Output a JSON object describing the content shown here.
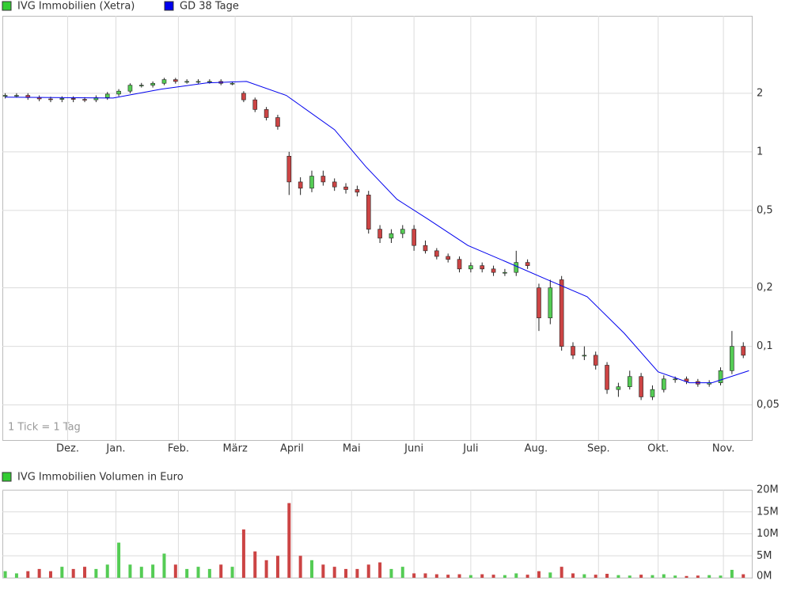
{
  "chart_data": [
    {
      "type": "candlestick",
      "annotation": "1 Tick = 1 Tag",
      "log_scale": true,
      "grid": true,
      "xlim": [
        0,
        264
      ],
      "xticks": [
        {
          "value": 23,
          "label": "Dez."
        },
        {
          "value": 40,
          "label": "Jan."
        },
        {
          "value": 62,
          "label": "Feb."
        },
        {
          "value": 82,
          "label": "März"
        },
        {
          "value": 102,
          "label": "April"
        },
        {
          "value": 123,
          "label": "Mai"
        },
        {
          "value": 145,
          "label": "Juni"
        },
        {
          "value": 165,
          "label": "Juli"
        },
        {
          "value": 188,
          "label": "Aug."
        },
        {
          "value": 210,
          "label": "Sep."
        },
        {
          "value": 231,
          "label": "Okt."
        },
        {
          "value": 254,
          "label": "Nov."
        }
      ],
      "ylim": [
        0.033,
        5
      ],
      "yticks": [
        {
          "value": 0.05,
          "label": "0,05"
        },
        {
          "value": 0.1,
          "label": "0,1"
        },
        {
          "value": 0.2,
          "label": "0,2"
        },
        {
          "value": 0.5,
          "label": "0,5"
        },
        1,
        2
      ],
      "series": [
        {
          "name": "IVG Immobilien (Xetra)",
          "color": "#33cc33",
          "up_color": "#55cc55",
          "down_color": "#cc4444",
          "x": [
            1,
            5,
            9,
            13,
            17,
            21,
            25,
            29,
            33,
            37,
            41,
            45,
            49,
            53,
            57,
            61,
            65,
            69,
            73,
            77,
            81,
            85,
            89,
            93,
            97,
            101,
            105,
            109,
            113,
            117,
            121,
            125,
            129,
            133,
            137,
            141,
            145,
            149,
            153,
            157,
            161,
            165,
            169,
            173,
            177,
            181,
            185,
            189,
            193,
            197,
            201,
            205,
            209,
            213,
            217,
            221,
            225,
            229,
            233,
            237,
            241,
            245,
            249,
            253,
            257,
            261
          ],
          "open": [
            1.93,
            1.95,
            1.95,
            1.9,
            1.87,
            1.86,
            1.88,
            1.86,
            1.85,
            1.9,
            1.98,
            2.05,
            2.2,
            2.2,
            2.25,
            2.35,
            2.3,
            2.3,
            2.3,
            2.3,
            2.25,
            2.0,
            1.85,
            1.65,
            1.5,
            0.95,
            0.7,
            0.65,
            0.75,
            0.7,
            0.66,
            0.64,
            0.6,
            0.4,
            0.36,
            0.38,
            0.4,
            0.33,
            0.31,
            0.29,
            0.28,
            0.25,
            0.26,
            0.25,
            0.24,
            0.24,
            0.27,
            0.2,
            0.14,
            0.22,
            0.1,
            0.09,
            0.09,
            0.08,
            0.06,
            0.062,
            0.07,
            0.055,
            0.06,
            0.068,
            0.068,
            0.066,
            0.064,
            0.065,
            0.075,
            0.1
          ],
          "high": [
            2.0,
            2.0,
            2.0,
            1.95,
            1.92,
            1.93,
            1.93,
            1.91,
            1.95,
            2.03,
            2.1,
            2.25,
            2.26,
            2.3,
            2.4,
            2.4,
            2.36,
            2.36,
            2.36,
            2.36,
            2.3,
            2.05,
            1.9,
            1.7,
            1.55,
            1.0,
            0.74,
            0.8,
            0.8,
            0.73,
            0.69,
            0.67,
            0.63,
            0.42,
            0.4,
            0.42,
            0.42,
            0.35,
            0.32,
            0.3,
            0.29,
            0.27,
            0.27,
            0.26,
            0.25,
            0.31,
            0.28,
            0.21,
            0.22,
            0.23,
            0.105,
            0.1,
            0.094,
            0.083,
            0.065,
            0.075,
            0.073,
            0.063,
            0.071,
            0.07,
            0.07,
            0.068,
            0.067,
            0.078,
            0.12,
            0.105
          ],
          "low": [
            1.88,
            1.9,
            1.85,
            1.82,
            1.8,
            1.8,
            1.8,
            1.8,
            1.8,
            1.85,
            1.93,
            2.0,
            2.14,
            2.14,
            2.2,
            2.24,
            2.24,
            2.24,
            2.24,
            2.2,
            2.2,
            1.8,
            1.6,
            1.45,
            1.3,
            0.6,
            0.6,
            0.62,
            0.67,
            0.63,
            0.61,
            0.59,
            0.38,
            0.34,
            0.34,
            0.36,
            0.31,
            0.3,
            0.28,
            0.27,
            0.24,
            0.24,
            0.24,
            0.23,
            0.23,
            0.23,
            0.25,
            0.12,
            0.13,
            0.095,
            0.086,
            0.085,
            0.076,
            0.057,
            0.055,
            0.06,
            0.053,
            0.053,
            0.058,
            0.065,
            0.064,
            0.062,
            0.062,
            0.063,
            0.072,
            0.087
          ],
          "close": [
            1.95,
            1.95,
            1.9,
            1.87,
            1.86,
            1.88,
            1.86,
            1.85,
            1.9,
            1.98,
            2.05,
            2.2,
            2.2,
            2.25,
            2.35,
            2.3,
            2.3,
            2.3,
            2.3,
            2.25,
            2.25,
            1.85,
            1.65,
            1.5,
            1.35,
            0.7,
            0.65,
            0.75,
            0.7,
            0.66,
            0.64,
            0.62,
            0.4,
            0.36,
            0.38,
            0.4,
            0.33,
            0.31,
            0.29,
            0.28,
            0.25,
            0.26,
            0.25,
            0.24,
            0.24,
            0.27,
            0.26,
            0.14,
            0.2,
            0.1,
            0.09,
            0.09,
            0.08,
            0.06,
            0.062,
            0.07,
            0.055,
            0.06,
            0.068,
            0.068,
            0.066,
            0.064,
            0.065,
            0.075,
            0.1,
            0.09
          ]
        },
        {
          "name": "GD 38 Tage",
          "color": "#0000ee",
          "type": "line",
          "x": [
            1,
            39,
            56,
            72,
            86,
            100,
            117,
            128,
            139,
            150,
            164,
            178,
            192,
            206,
            219,
            231,
            242,
            250,
            263
          ],
          "values": [
            1.91,
            1.89,
            2.1,
            2.26,
            2.3,
            1.95,
            1.3,
            0.84,
            0.57,
            0.45,
            0.33,
            0.27,
            0.22,
            0.18,
            0.117,
            0.074,
            0.065,
            0.065,
            0.075
          ]
        }
      ]
    },
    {
      "type": "bar",
      "title": "IVG Immobilien Volumen in Euro",
      "color": "#33cc33",
      "grid": true,
      "ylim": [
        0,
        20
      ],
      "yticks": [
        {
          "value": 0,
          "label": "0M"
        },
        {
          "value": 5,
          "label": "5M"
        },
        {
          "value": 10,
          "label": "10M"
        },
        {
          "value": 15,
          "label": "15M"
        },
        {
          "value": 20,
          "label": "20M"
        }
      ],
      "values": [
        1.5,
        1,
        1.5,
        2,
        1.5,
        2.5,
        2,
        2.5,
        2,
        3,
        8,
        3,
        2.5,
        3,
        5.5,
        3,
        2,
        2.5,
        2,
        3,
        2.5,
        11,
        6,
        4,
        5,
        17,
        5,
        4,
        3,
        2.5,
        2,
        2,
        3,
        3.5,
        2,
        2.5,
        1,
        1,
        0.8,
        0.7,
        0.8,
        0.6,
        0.8,
        0.7,
        0.6,
        1,
        0.7,
        1.5,
        1.2,
        2.5,
        1,
        0.8,
        0.7,
        0.9,
        0.6,
        0.5,
        0.7,
        0.6,
        0.8,
        0.5,
        0.4,
        0.5,
        0.6,
        0.5,
        1.8,
        0.8
      ]
    }
  ]
}
